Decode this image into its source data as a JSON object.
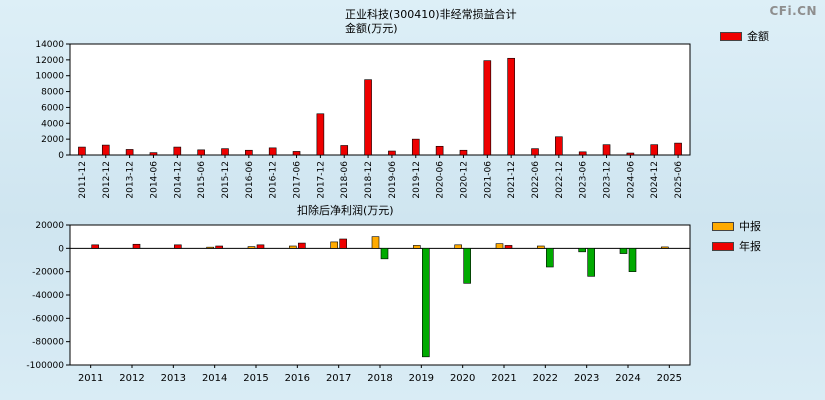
{
  "watermark": "CFi.CN",
  "chart_data": [
    {
      "type": "bar",
      "title": "正业科技(300410)非经常损益合计 金额(万元)",
      "title_lines": [
        "正业科技(300410)非经常损益合计",
        "金额(万元)"
      ],
      "categories": [
        "2011-12",
        "2012-12",
        "2013-12",
        "2014-06",
        "2014-12",
        "2015-06",
        "2015-12",
        "2016-06",
        "2016-12",
        "2017-06",
        "2017-12",
        "2018-06",
        "2018-12",
        "2019-06",
        "2019-12",
        "2020-06",
        "2020-12",
        "2021-06",
        "2021-12",
        "2022-06",
        "2022-12",
        "2023-06",
        "2023-12",
        "2024-06",
        "2024-12",
        "2025-06"
      ],
      "series": [
        {
          "name": "金额",
          "color": "#ee0000",
          "values": [
            1000,
            1250,
            700,
            300,
            1000,
            650,
            800,
            600,
            900,
            450,
            5200,
            1200,
            9500,
            500,
            2000,
            1100,
            600,
            11900,
            12200,
            800,
            2300,
            400,
            1300,
            250,
            1300,
            1500
          ]
        }
      ],
      "ylabel": "金额(万元)",
      "ylim": [
        0,
        14000
      ],
      "yticks": [
        14000,
        12000,
        10000,
        8000,
        6000,
        4000,
        2000,
        0
      ],
      "negative_color": "#00aa00",
      "legend_position": "top-right",
      "grid": false
    },
    {
      "type": "bar",
      "title": "扣除后净利润(万元)",
      "categories": [
        "2011",
        "2012",
        "2013",
        "2014",
        "2015",
        "2016",
        "2017",
        "2018",
        "2019",
        "2020",
        "2021",
        "2022",
        "2023",
        "2024",
        "2025"
      ],
      "series": [
        {
          "name": "中报",
          "color": "#ffaa00",
          "values": [
            null,
            null,
            null,
            1000,
            1500,
            2000,
            5500,
            10000,
            2500,
            3000,
            4000,
            2000,
            -3000,
            -4500,
            1200
          ]
        },
        {
          "name": "年报",
          "color": "#ee0000",
          "values": [
            3000,
            3500,
            3000,
            2000,
            3000,
            4500,
            8000,
            -9000,
            -93000,
            -30000,
            2500,
            -16000,
            -24000,
            -20000,
            null
          ]
        }
      ],
      "ylabel": "扣除后净利润(万元)",
      "ylim": [
        -100000,
        20000
      ],
      "yticks": [
        20000,
        0,
        -20000,
        -40000,
        -60000,
        -80000,
        -100000
      ],
      "negative_color": "#00aa00",
      "legend_position": "top-right",
      "grid": false
    }
  ]
}
